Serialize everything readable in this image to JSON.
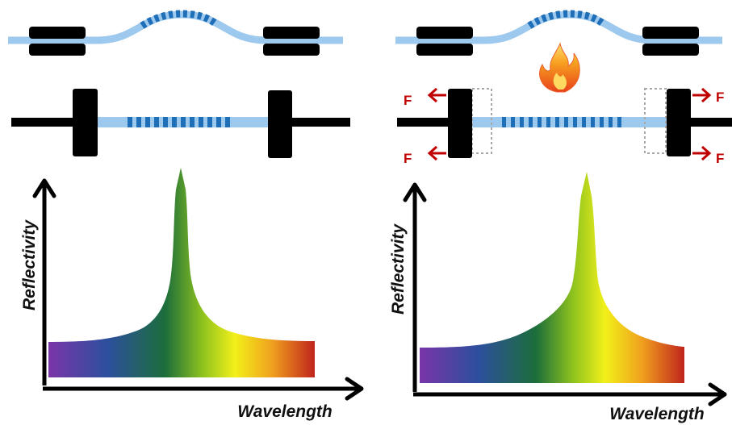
{
  "colors": {
    "fiber": "#9dc9ee",
    "grating": "#1f6fb8",
    "clamp": "#000000",
    "force": "#c00000",
    "dashed_box": "#a8a8a8"
  },
  "left_panel": {
    "y_axis_label": "Reflectivity",
    "x_axis_label": "Wavelength"
  },
  "right_panel": {
    "y_axis_label": "Reflectivity",
    "x_axis_label": "Wavelength",
    "force_labels": [
      "F",
      "F",
      "F",
      "F"
    ],
    "heat_icon": "flame-icon"
  },
  "spectrum_gradient": [
    "#7a35a8",
    "#2d4f9e",
    "#1c6e3a",
    "#5aa522",
    "#e8e81a",
    "#f0a71e",
    "#c0241c"
  ]
}
